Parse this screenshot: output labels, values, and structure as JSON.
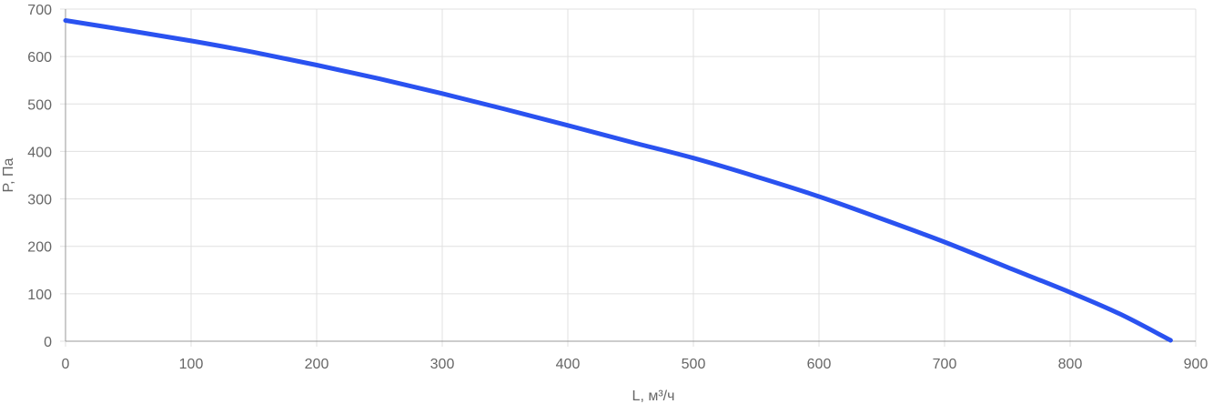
{
  "chart_data": {
    "type": "line",
    "title": "",
    "xlabel": "L, м³/ч",
    "ylabel": "P, Па",
    "xlim": [
      0,
      900
    ],
    "ylim": [
      0,
      700
    ],
    "x_ticks": [
      "0",
      "100",
      "200",
      "300",
      "400",
      "500",
      "600",
      "700",
      "800",
      "900"
    ],
    "y_ticks": [
      "0",
      "100",
      "200",
      "300",
      "400",
      "500",
      "600",
      "700"
    ],
    "grid": true,
    "legend": "none",
    "series": [
      {
        "color": "#2a52f0",
        "x": [
          0,
          50,
          100,
          150,
          200,
          250,
          300,
          350,
          400,
          450,
          500,
          550,
          600,
          650,
          700,
          750,
          800,
          840,
          880
        ],
        "y": [
          676,
          655,
          633,
          609,
          582,
          553,
          522,
          489,
          455,
          420,
          386,
          347,
          305,
          258,
          209,
          156,
          103,
          57,
          2
        ]
      }
    ]
  }
}
